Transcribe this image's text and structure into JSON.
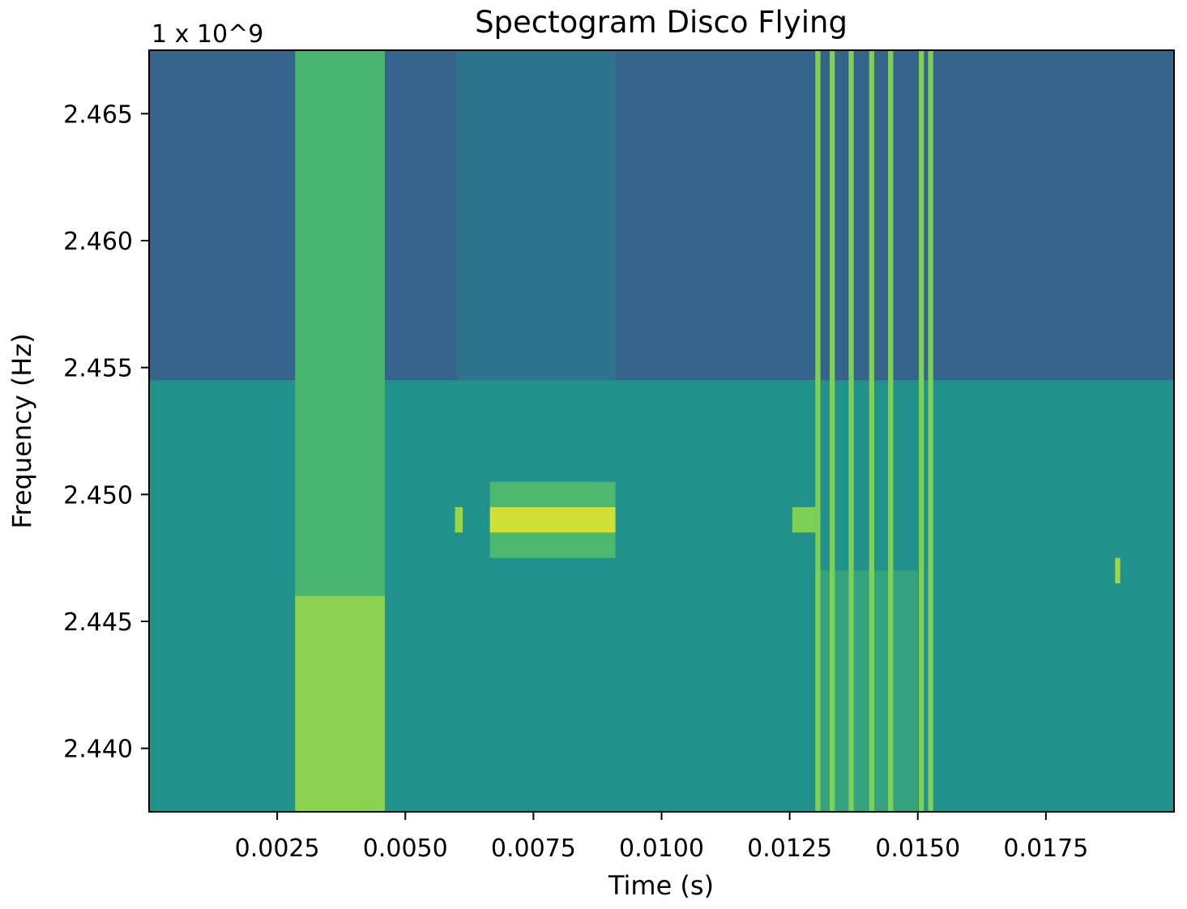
{
  "chart_data": {
    "type": "heatmap",
    "title": "Spectogram Disco Flying",
    "xlabel": "Time (s)",
    "ylabel": "Frequency (Hz)",
    "y_offset_text": "1 x 10^9",
    "colormap": "viridis",
    "xlim": [
      0.0,
      0.02
    ],
    "ylim": [
      2.4375,
      2.4675
    ],
    "x_ticks": [
      "0.0025",
      "0.0050",
      "0.0075",
      "0.0100",
      "0.0125",
      "0.0150",
      "0.0175"
    ],
    "y_ticks": [
      "2.440",
      "2.445",
      "2.450",
      "2.455",
      "2.460",
      "2.465"
    ],
    "background_levels": [
      {
        "f_from": 2.4375,
        "f_to": 2.4545,
        "level": 0.5
      },
      {
        "f_from": 2.4545,
        "f_to": 2.4675,
        "level": 0.32
      }
    ],
    "signals": [
      {
        "t0": 0.00285,
        "t1": 0.0046,
        "f0": 2.4375,
        "f1": 2.4675,
        "level": 0.66
      },
      {
        "t0": 0.00285,
        "t1": 0.0046,
        "f0": 2.4375,
        "f1": 2.446,
        "level": 0.82
      },
      {
        "t0": 0.00597,
        "t1": 0.00612,
        "f0": 2.4485,
        "f1": 2.4495,
        "level": 0.85
      },
      {
        "t0": 0.00665,
        "t1": 0.0091,
        "f0": 2.4475,
        "f1": 2.4505,
        "level": 0.68
      },
      {
        "t0": 0.00665,
        "t1": 0.0091,
        "f0": 2.4485,
        "f1": 2.4495,
        "level": 0.93
      },
      {
        "t0": 0.006,
        "t1": 0.0091,
        "f0": 2.4545,
        "f1": 2.4675,
        "level": 0.38
      },
      {
        "t0": 0.01255,
        "t1": 0.013,
        "f0": 2.4485,
        "f1": 2.4495,
        "level": 0.8
      },
      {
        "t0": 0.013,
        "t1": 0.015,
        "f0": 2.4375,
        "f1": 2.447,
        "level": 0.58
      },
      {
        "t0": 0.013,
        "t1": 0.0131,
        "f0": 2.4375,
        "f1": 2.4675,
        "level": 0.8
      },
      {
        "t0": 0.01328,
        "t1": 0.01338,
        "f0": 2.4375,
        "f1": 2.4675,
        "level": 0.8
      },
      {
        "t0": 0.01365,
        "t1": 0.01375,
        "f0": 2.4375,
        "f1": 2.4675,
        "level": 0.8
      },
      {
        "t0": 0.01405,
        "t1": 0.01415,
        "f0": 2.4375,
        "f1": 2.4675,
        "level": 0.8
      },
      {
        "t0": 0.01442,
        "t1": 0.01452,
        "f0": 2.4375,
        "f1": 2.4675,
        "level": 0.8
      },
      {
        "t0": 0.01502,
        "t1": 0.01512,
        "f0": 2.4375,
        "f1": 2.4675,
        "level": 0.8
      },
      {
        "t0": 0.0152,
        "t1": 0.0153,
        "f0": 2.4375,
        "f1": 2.4675,
        "level": 0.8
      },
      {
        "t0": 0.01885,
        "t1": 0.01895,
        "f0": 2.4465,
        "f1": 2.4475,
        "level": 0.85
      }
    ]
  }
}
